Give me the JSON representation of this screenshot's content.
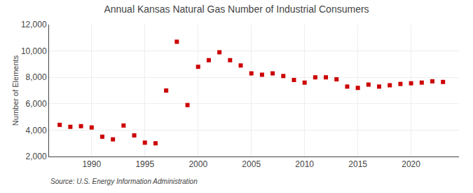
{
  "chart_data": {
    "type": "scatter",
    "title": "Annual Kansas Natural Gas Number of Industrial Consumers",
    "ylabel": "Number of Elements",
    "annotations": [
      "Source: U.S. Energy Information Administration"
    ],
    "x": [
      1987,
      1988,
      1989,
      1990,
      1991,
      1992,
      1993,
      1994,
      1995,
      1996,
      1997,
      1998,
      1999,
      2000,
      2001,
      2002,
      2003,
      2004,
      2005,
      2006,
      2007,
      2008,
      2009,
      2010,
      2011,
      2012,
      2013,
      2014,
      2015,
      2016,
      2017,
      2018,
      2019,
      2020,
      2021,
      2022,
      2023
    ],
    "values": [
      4400,
      4250,
      4300,
      4200,
      3500,
      3300,
      4350,
      3600,
      3050,
      3000,
      7000,
      10700,
      5900,
      8800,
      9300,
      9900,
      9300,
      8900,
      8300,
      8200,
      8300,
      8100,
      7800,
      7600,
      8000,
      8000,
      7850,
      7300,
      7200,
      7450,
      7300,
      7400,
      7500,
      7550,
      7600,
      7700,
      7650
    ],
    "color": "#cc0000",
    "marker": "square",
    "xlim": [
      1986,
      2024.5
    ],
    "xticks": [
      1990,
      1995,
      2000,
      2005,
      2010,
      2015,
      2020
    ],
    "ylim": [
      2000,
      12000
    ],
    "yticks": [
      {
        "value": 2000,
        "label": "2,000"
      },
      {
        "value": 4000,
        "label": "4,000"
      },
      {
        "value": 6000,
        "label": "6,000"
      },
      {
        "value": 8000,
        "label": "8,000"
      },
      {
        "value": 10000,
        "label": "10,000"
      },
      {
        "value": 12000,
        "label": "12,000"
      }
    ],
    "grid": true
  }
}
